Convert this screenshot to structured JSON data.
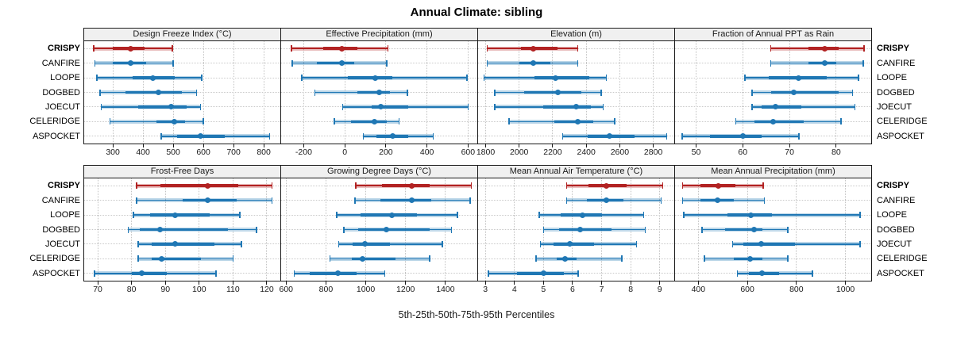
{
  "title": "Annual Climate: sibling",
  "colors": {
    "normal": "#1f77b4",
    "normal_band": "rgba(31,119,180,0.30)",
    "highlight": "#b22222",
    "highlight_band": "rgba(178,34,34,0.28)",
    "header_bg": "#f0f0f0",
    "panel_border": "#1a1a1a",
    "grid": "#c6c6c6"
  },
  "chart_data": {
    "type": "scatter",
    "style": "multi-panel horizontal percentile-interval dot plot (lattice style); dot=50th, thick=25th-75th, light band with caps=5th-95th",
    "grid": "dotted",
    "legend_position": "none",
    "xlabel": "5th-25th-50th-75th-95th Percentiles",
    "categories": [
      "CRISPY",
      "CANFIRE",
      "LOOPE",
      "DOGBED",
      "JOECUT",
      "CELERIDGE",
      "ASPOCKET"
    ],
    "highlighted_category": "CRISPY",
    "panels": [
      {
        "title": "Design Freeze Index (°C)",
        "xlim": [
          205,
          855
        ],
        "ticks": [
          300,
          400,
          500,
          600,
          700,
          800
        ],
        "series": [
          {
            "name": "CRISPY",
            "percentiles": [
              237,
              300,
              358,
              405,
              497
            ]
          },
          {
            "name": "CANFIRE",
            "percentiles": [
              240,
              300,
              360,
              410,
              500
            ]
          },
          {
            "name": "LOOPE",
            "percentiles": [
              247,
              365,
              432,
              505,
              595
            ]
          },
          {
            "name": "DOGBED",
            "percentiles": [
              257,
              342,
              452,
              528,
              578
            ]
          },
          {
            "name": "JOECUT",
            "percentiles": [
              262,
              385,
              494,
              545,
              590
            ]
          },
          {
            "name": "CELERIDGE",
            "percentiles": [
              290,
              445,
              503,
              540,
              600
            ]
          },
          {
            "name": "ASPOCKET",
            "percentiles": [
              460,
              512,
              590,
              670,
              820
            ]
          }
        ]
      },
      {
        "title": "Effective Precipitation (mm)",
        "xlim": [
          -310,
          645
        ],
        "ticks": [
          -200,
          0,
          200,
          400,
          600
        ],
        "series": [
          {
            "name": "CRISPY",
            "percentiles": [
              -260,
              -105,
              -15,
              60,
              210
            ]
          },
          {
            "name": "CANFIRE",
            "percentiles": [
              -255,
              -135,
              -15,
              45,
              205
            ]
          },
          {
            "name": "LOOPE",
            "percentiles": [
              -210,
              15,
              148,
              230,
              595
            ]
          },
          {
            "name": "DOGBED",
            "percentiles": [
              -145,
              60,
              167,
              220,
              305
            ]
          },
          {
            "name": "JOECUT",
            "percentiles": [
              -10,
              130,
              175,
              310,
              600
            ]
          },
          {
            "name": "CELERIDGE",
            "percentiles": [
              -50,
              30,
              145,
              205,
              265
            ]
          },
          {
            "name": "ASPOCKET",
            "percentiles": [
              90,
              155,
              232,
              310,
              430
            ]
          }
        ]
      },
      {
        "title": "Elevation (m)",
        "xlim": [
          1755,
          2925
        ],
        "ticks": [
          1800,
          2000,
          2200,
          2400,
          2600,
          2800
        ],
        "series": [
          {
            "name": "CRISPY",
            "percentiles": [
              1810,
              2010,
              2085,
              2230,
              2350
            ]
          },
          {
            "name": "CANFIRE",
            "percentiles": [
              1810,
              2000,
              2085,
              2185,
              2350
            ]
          },
          {
            "name": "LOOPE",
            "percentiles": [
              1790,
              2090,
              2215,
              2420,
              2520
            ]
          },
          {
            "name": "DOGBED",
            "percentiles": [
              1855,
              2030,
              2230,
              2370,
              2490
            ]
          },
          {
            "name": "JOECUT",
            "percentiles": [
              1855,
              2145,
              2340,
              2430,
              2500
            ]
          },
          {
            "name": "CELERIDGE",
            "percentiles": [
              1940,
              2210,
              2350,
              2440,
              2570
            ]
          },
          {
            "name": "ASPOCKET",
            "percentiles": [
              2260,
              2410,
              2540,
              2690,
              2880
            ]
          }
        ]
      },
      {
        "title": "Fraction of Annual PPT as Rain",
        "xlim": [
          45.5,
          87.5
        ],
        "ticks": [
          50,
          60,
          70,
          80
        ],
        "series": [
          {
            "name": "CRISPY",
            "percentiles": [
              66,
              74,
              77.5,
              80.5,
              86
            ]
          },
          {
            "name": "CANFIRE",
            "percentiles": [
              66,
              74,
              77.5,
              80,
              85.8
            ]
          },
          {
            "name": "LOOPE",
            "percentiles": [
              60.5,
              65.5,
              72,
              78,
              84.8
            ]
          },
          {
            "name": "DOGBED",
            "percentiles": [
              62,
              66,
              71,
              80.5,
              83.5
            ]
          },
          {
            "name": "JOECUT",
            "percentiles": [
              62,
              64,
              67,
              72.5,
              84
            ]
          },
          {
            "name": "CELERIDGE",
            "percentiles": [
              58.5,
              62.5,
              66.5,
              73,
              81
            ]
          },
          {
            "name": "ASPOCKET",
            "percentiles": [
              47,
              53,
              60,
              64,
              72
            ]
          }
        ]
      },
      {
        "title": "Frost-Free Days",
        "xlim": [
          66,
          124
        ],
        "ticks": [
          70,
          80,
          90,
          100,
          110,
          120
        ],
        "series": [
          {
            "name": "CRISPY",
            "percentiles": [
              81.5,
              88.5,
              102.5,
              111.5,
              121.5
            ]
          },
          {
            "name": "CANFIRE",
            "percentiles": [
              81.5,
              95,
              102.5,
              111,
              121.5
            ]
          },
          {
            "name": "LOOPE",
            "percentiles": [
              80.5,
              85.5,
              93,
              103,
              112
            ]
          },
          {
            "name": "DOGBED",
            "percentiles": [
              79,
              82.5,
              88.5,
              108.5,
              117
            ]
          },
          {
            "name": "JOECUT",
            "percentiles": [
              82,
              86,
              93,
              104.5,
              112.5
            ]
          },
          {
            "name": "CELERIDGE",
            "percentiles": [
              82,
              86,
              89,
              100.5,
              110
            ]
          },
          {
            "name": "ASPOCKET",
            "percentiles": [
              69,
              80,
              83,
              90.5,
              105
            ]
          }
        ]
      },
      {
        "title": "Growing Degree Days (°C)",
        "xlim": [
          575,
          1560
        ],
        "ticks": [
          600,
          800,
          1000,
          1200,
          1400
        ],
        "series": [
          {
            "name": "CRISPY",
            "percentiles": [
              950,
              1080,
              1230,
              1320,
              1530
            ]
          },
          {
            "name": "CANFIRE",
            "percentiles": [
              945,
              1075,
              1230,
              1330,
              1525
            ]
          },
          {
            "name": "LOOPE",
            "percentiles": [
              855,
              975,
              1130,
              1255,
              1460
            ]
          },
          {
            "name": "DOGBED",
            "percentiles": [
              890,
              960,
              1105,
              1320,
              1430
            ]
          },
          {
            "name": "JOECUT",
            "percentiles": [
              865,
              935,
              995,
              1120,
              1385
            ]
          },
          {
            "name": "CELERIDGE",
            "percentiles": [
              820,
              930,
              985,
              1150,
              1320
            ]
          },
          {
            "name": "ASPOCKET",
            "percentiles": [
              640,
              720,
              860,
              955,
              1095
            ]
          }
        ]
      },
      {
        "title": "Mean Annual Air Temperature (°C)",
        "xlim": [
          2.75,
          9.5
        ],
        "ticks": [
          3,
          4,
          5,
          6,
          7,
          8,
          9
        ],
        "series": [
          {
            "name": "CRISPY",
            "percentiles": [
              5.8,
              6.55,
              7.15,
              7.85,
              9.1
            ]
          },
          {
            "name": "CANFIRE",
            "percentiles": [
              5.8,
              6.5,
              7.15,
              7.75,
              9.05
            ]
          },
          {
            "name": "LOOPE",
            "percentiles": [
              4.85,
              5.6,
              6.35,
              7.0,
              8.45
            ]
          },
          {
            "name": "DOGBED",
            "percentiles": [
              5.0,
              5.55,
              6.25,
              7.35,
              8.5
            ]
          },
          {
            "name": "JOECUT",
            "percentiles": [
              4.9,
              5.35,
              5.9,
              6.75,
              8.2
            ]
          },
          {
            "name": "CELERIDGE",
            "percentiles": [
              4.75,
              5.45,
              5.75,
              6.15,
              7.7
            ]
          },
          {
            "name": "ASPOCKET",
            "percentiles": [
              3.1,
              4.1,
              5.0,
              5.7,
              6.2
            ]
          }
        ]
      },
      {
        "title": "Mean Annual Precipitation (mm)",
        "xlim": [
          305,
          1105
        ],
        "ticks": [
          400,
          600,
          800,
          1000
        ],
        "series": [
          {
            "name": "CRISPY",
            "percentiles": [
              335,
              410,
              480,
              550,
              665
            ]
          },
          {
            "name": "CANFIRE",
            "percentiles": [
              335,
              410,
              478,
              545,
              670
            ]
          },
          {
            "name": "LOOPE",
            "percentiles": [
              340,
              520,
              615,
              700,
              1060
            ]
          },
          {
            "name": "DOGBED",
            "percentiles": [
              415,
              510,
              628,
              660,
              765
            ]
          },
          {
            "name": "JOECUT",
            "percentiles": [
              540,
              585,
              655,
              795,
              1060
            ]
          },
          {
            "name": "CELERIDGE",
            "percentiles": [
              425,
              545,
              610,
              660,
              765
            ]
          },
          {
            "name": "ASPOCKET",
            "percentiles": [
              560,
              605,
              660,
              730,
              865
            ]
          }
        ]
      }
    ]
  }
}
